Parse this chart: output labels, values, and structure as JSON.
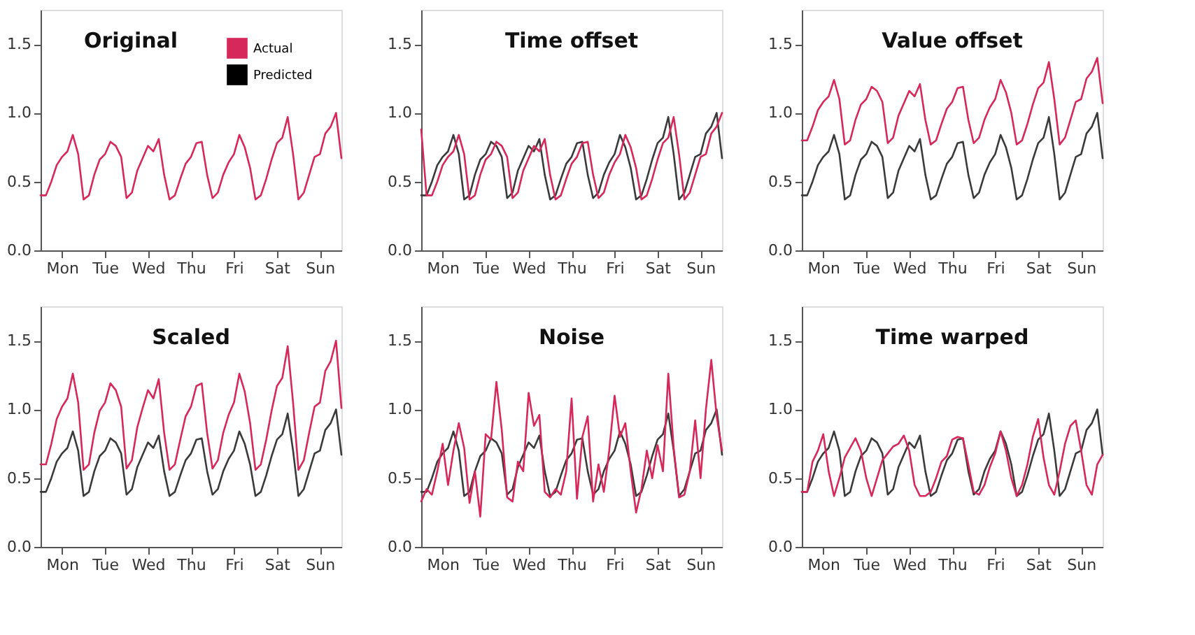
{
  "chart_data": [
    {
      "type": "line",
      "title": "Original",
      "legend": "top right",
      "grid": false,
      "marker": "none",
      "line_style": "solid",
      "categories": [
        null,
        null,
        null,
        null,
        "Mon",
        null,
        null,
        null,
        null,
        null,
        null,
        null,
        "Tue",
        null,
        null,
        null,
        null,
        null,
        null,
        null,
        "Wed",
        null,
        null,
        null,
        null,
        null,
        null,
        null,
        "Thu",
        null,
        null,
        null,
        null,
        null,
        null,
        null,
        "Fri",
        null,
        null,
        null,
        null,
        null,
        null,
        null,
        "Sat",
        null,
        null,
        null,
        null,
        null,
        null,
        null,
        "Sun",
        null,
        null,
        null,
        null
      ],
      "ylim": [
        0,
        1.75
      ],
      "yticks": [
        {
          "value": 0,
          "label": "0.0"
        },
        {
          "value": 0.5,
          "label": "0.5"
        },
        {
          "value": 1,
          "label": "1.0"
        },
        {
          "value": 1.5,
          "label": "1.5"
        }
      ],
      "series": [
        {
          "name": "Predicted",
          "color": "#000000",
          "values": [
            null,
            null,
            null,
            null,
            null,
            null,
            null,
            null,
            null,
            null,
            null,
            null,
            null,
            null,
            null,
            null,
            null,
            null,
            null,
            null,
            null,
            null,
            null,
            null,
            null,
            null,
            null,
            null,
            null,
            null,
            null,
            null,
            null,
            null,
            null,
            null,
            null,
            null,
            null,
            null,
            null,
            null,
            null,
            null,
            null,
            null,
            null,
            null,
            null,
            null,
            null,
            null,
            null,
            null,
            null,
            null,
            null
          ]
        },
        {
          "name": "Actual",
          "color": "#d6285a",
          "values": [
            0.4,
            0.4,
            0.5,
            0.62,
            0.68,
            0.72,
            0.84,
            0.7,
            0.37,
            0.4,
            0.55,
            0.66,
            0.7,
            0.79,
            0.76,
            0.68,
            0.38,
            0.42,
            0.58,
            0.67,
            0.76,
            0.72,
            0.81,
            0.55,
            0.37,
            0.4,
            0.52,
            0.63,
            0.68,
            0.78,
            0.79,
            0.55,
            0.38,
            0.42,
            0.55,
            0.64,
            0.7,
            0.84,
            0.75,
            0.6,
            0.37,
            0.4,
            0.52,
            0.66,
            0.78,
            0.82,
            0.97,
            0.7,
            0.37,
            0.42,
            0.55,
            0.68,
            0.7,
            0.85,
            0.9,
            1.0,
            0.67
          ]
        }
      ]
    },
    {
      "type": "line",
      "title": "Time offset",
      "grid": false,
      "marker": "none",
      "line_style": "solid",
      "categories": [
        null,
        null,
        null,
        null,
        "Mon",
        null,
        null,
        null,
        null,
        null,
        null,
        null,
        "Tue",
        null,
        null,
        null,
        null,
        null,
        null,
        null,
        "Wed",
        null,
        null,
        null,
        null,
        null,
        null,
        null,
        "Thu",
        null,
        null,
        null,
        null,
        null,
        null,
        null,
        "Fri",
        null,
        null,
        null,
        null,
        null,
        null,
        null,
        "Sat",
        null,
        null,
        null,
        null,
        null,
        null,
        null,
        "Sun",
        null,
        null,
        null,
        null
      ],
      "ylim": [
        0,
        1.75
      ],
      "yticks": [
        {
          "value": 0,
          "label": "0.0"
        },
        {
          "value": 0.5,
          "label": "0.5"
        },
        {
          "value": 1,
          "label": "1.0"
        },
        {
          "value": 1.5,
          "label": "1.5"
        }
      ],
      "series": [
        {
          "color": "#3a3a3a",
          "values": [
            0.4,
            0.4,
            0.5,
            0.62,
            0.68,
            0.72,
            0.84,
            0.7,
            0.37,
            0.4,
            0.55,
            0.66,
            0.7,
            0.79,
            0.76,
            0.68,
            0.38,
            0.42,
            0.58,
            0.67,
            0.76,
            0.72,
            0.81,
            0.55,
            0.37,
            0.4,
            0.52,
            0.63,
            0.68,
            0.78,
            0.79,
            0.55,
            0.38,
            0.42,
            0.55,
            0.64,
            0.7,
            0.84,
            0.75,
            0.6,
            0.37,
            0.4,
            0.52,
            0.66,
            0.78,
            0.82,
            0.97,
            0.7,
            0.37,
            0.42,
            0.55,
            0.68,
            0.7,
            0.85,
            0.9,
            1.0,
            0.67
          ]
        },
        {
          "color": "#d6285a",
          "values": [
            0.88,
            0.4,
            0.4,
            0.5,
            0.62,
            0.68,
            0.72,
            0.84,
            0.7,
            0.37,
            0.4,
            0.55,
            0.66,
            0.7,
            0.79,
            0.76,
            0.68,
            0.38,
            0.42,
            0.58,
            0.67,
            0.76,
            0.72,
            0.81,
            0.55,
            0.37,
            0.4,
            0.52,
            0.63,
            0.68,
            0.78,
            0.79,
            0.55,
            0.38,
            0.42,
            0.55,
            0.64,
            0.7,
            0.84,
            0.75,
            0.6,
            0.37,
            0.4,
            0.52,
            0.66,
            0.78,
            0.82,
            0.97,
            0.7,
            0.37,
            0.42,
            0.55,
            0.68,
            0.7,
            0.85,
            0.9,
            1.0
          ]
        }
      ]
    },
    {
      "type": "line",
      "title": "Value offset",
      "grid": false,
      "marker": "none",
      "line_style": "solid",
      "categories": [
        null,
        null,
        null,
        null,
        "Mon",
        null,
        null,
        null,
        null,
        null,
        null,
        null,
        "Tue",
        null,
        null,
        null,
        null,
        null,
        null,
        null,
        "Wed",
        null,
        null,
        null,
        null,
        null,
        null,
        null,
        "Thu",
        null,
        null,
        null,
        null,
        null,
        null,
        null,
        "Fri",
        null,
        null,
        null,
        null,
        null,
        null,
        null,
        "Sat",
        null,
        null,
        null,
        null,
        null,
        null,
        null,
        "Sun",
        null,
        null,
        null,
        null
      ],
      "ylim": [
        0,
        1.75
      ],
      "yticks": [
        {
          "value": 0,
          "label": "0.0"
        },
        {
          "value": 0.5,
          "label": "0.5"
        },
        {
          "value": 1,
          "label": "1.0"
        },
        {
          "value": 1.5,
          "label": "1.5"
        }
      ],
      "series": [
        {
          "color": "#3a3a3a",
          "values": [
            0.4,
            0.4,
            0.5,
            0.62,
            0.68,
            0.72,
            0.84,
            0.7,
            0.37,
            0.4,
            0.55,
            0.66,
            0.7,
            0.79,
            0.76,
            0.68,
            0.38,
            0.42,
            0.58,
            0.67,
            0.76,
            0.72,
            0.81,
            0.55,
            0.37,
            0.4,
            0.52,
            0.63,
            0.68,
            0.78,
            0.79,
            0.55,
            0.38,
            0.42,
            0.55,
            0.64,
            0.7,
            0.84,
            0.75,
            0.6,
            0.37,
            0.4,
            0.52,
            0.66,
            0.78,
            0.82,
            0.97,
            0.7,
            0.37,
            0.42,
            0.55,
            0.68,
            0.7,
            0.85,
            0.9,
            1.0,
            0.67
          ]
        },
        {
          "color": "#d6285a",
          "values": [
            0.8,
            0.8,
            0.9,
            1.02,
            1.08,
            1.12,
            1.24,
            1.1,
            0.77,
            0.8,
            0.95,
            1.06,
            1.1,
            1.19,
            1.16,
            1.08,
            0.78,
            0.82,
            0.98,
            1.07,
            1.16,
            1.12,
            1.21,
            0.95,
            0.77,
            0.8,
            0.92,
            1.03,
            1.08,
            1.18,
            1.19,
            0.95,
            0.78,
            0.82,
            0.95,
            1.04,
            1.1,
            1.24,
            1.15,
            1.0,
            0.77,
            0.8,
            0.92,
            1.06,
            1.18,
            1.22,
            1.37,
            1.1,
            0.77,
            0.82,
            0.95,
            1.08,
            1.1,
            1.25,
            1.3,
            1.4,
            1.07
          ]
        }
      ]
    },
    {
      "type": "line",
      "title": "Scaled",
      "grid": false,
      "marker": "none",
      "line_style": "solid",
      "categories": [
        null,
        null,
        null,
        null,
        "Mon",
        null,
        null,
        null,
        null,
        null,
        null,
        null,
        "Tue",
        null,
        null,
        null,
        null,
        null,
        null,
        null,
        "Wed",
        null,
        null,
        null,
        null,
        null,
        null,
        null,
        "Thu",
        null,
        null,
        null,
        null,
        null,
        null,
        null,
        "Fri",
        null,
        null,
        null,
        null,
        null,
        null,
        null,
        "Sat",
        null,
        null,
        null,
        null,
        null,
        null,
        null,
        "Sun",
        null,
        null,
        null,
        null
      ],
      "ylim": [
        0,
        1.75
      ],
      "yticks": [
        {
          "value": 0,
          "label": "0.0"
        },
        {
          "value": 0.5,
          "label": "0.5"
        },
        {
          "value": 1,
          "label": "1.0"
        },
        {
          "value": 1.5,
          "label": "1.5"
        }
      ],
      "series": [
        {
          "color": "#3a3a3a",
          "values": [
            0.4,
            0.4,
            0.5,
            0.62,
            0.68,
            0.72,
            0.84,
            0.7,
            0.37,
            0.4,
            0.55,
            0.66,
            0.7,
            0.79,
            0.76,
            0.68,
            0.38,
            0.42,
            0.58,
            0.67,
            0.76,
            0.72,
            0.81,
            0.55,
            0.37,
            0.4,
            0.52,
            0.63,
            0.68,
            0.78,
            0.79,
            0.55,
            0.38,
            0.42,
            0.55,
            0.64,
            0.7,
            0.84,
            0.75,
            0.6,
            0.37,
            0.4,
            0.52,
            0.66,
            0.78,
            0.82,
            0.97,
            0.7,
            0.37,
            0.42,
            0.55,
            0.68,
            0.7,
            0.85,
            0.9,
            1.0,
            0.67
          ]
        },
        {
          "color": "#d6285a",
          "values": [
            0.6,
            0.6,
            0.75,
            0.93,
            1.02,
            1.08,
            1.26,
            1.05,
            0.56,
            0.6,
            0.83,
            0.99,
            1.05,
            1.19,
            1.14,
            1.02,
            0.57,
            0.63,
            0.87,
            1.01,
            1.14,
            1.08,
            1.22,
            0.83,
            0.56,
            0.6,
            0.78,
            0.95,
            1.02,
            1.17,
            1.19,
            0.83,
            0.57,
            0.63,
            0.83,
            0.96,
            1.05,
            1.26,
            1.13,
            0.9,
            0.56,
            0.6,
            0.78,
            0.99,
            1.17,
            1.23,
            1.46,
            1.05,
            0.56,
            0.63,
            0.83,
            1.02,
            1.05,
            1.28,
            1.35,
            1.5,
            1.01
          ]
        }
      ]
    },
    {
      "type": "line",
      "title": "Noise",
      "grid": false,
      "marker": "none",
      "line_style": "solid",
      "categories": [
        null,
        null,
        null,
        null,
        "Mon",
        null,
        null,
        null,
        null,
        null,
        null,
        null,
        "Tue",
        null,
        null,
        null,
        null,
        null,
        null,
        null,
        "Wed",
        null,
        null,
        null,
        null,
        null,
        null,
        null,
        "Thu",
        null,
        null,
        null,
        null,
        null,
        null,
        null,
        "Fri",
        null,
        null,
        null,
        null,
        null,
        null,
        null,
        "Sat",
        null,
        null,
        null,
        null,
        null,
        null,
        null,
        "Sun",
        null,
        null,
        null,
        null
      ],
      "ylim": [
        0,
        1.75
      ],
      "yticks": [
        {
          "value": 0,
          "label": "0.0"
        },
        {
          "value": 0.5,
          "label": "0.5"
        },
        {
          "value": 1,
          "label": "1.0"
        },
        {
          "value": 1.5,
          "label": "1.5"
        }
      ],
      "series": [
        {
          "color": "#3a3a3a",
          "values": [
            0.4,
            0.4,
            0.5,
            0.62,
            0.68,
            0.72,
            0.84,
            0.7,
            0.37,
            0.4,
            0.55,
            0.66,
            0.7,
            0.79,
            0.76,
            0.68,
            0.38,
            0.42,
            0.58,
            0.67,
            0.76,
            0.72,
            0.81,
            0.55,
            0.37,
            0.4,
            0.52,
            0.63,
            0.68,
            0.78,
            0.79,
            0.55,
            0.38,
            0.42,
            0.55,
            0.64,
            0.7,
            0.84,
            0.75,
            0.6,
            0.37,
            0.4,
            0.52,
            0.66,
            0.78,
            0.82,
            0.97,
            0.7,
            0.37,
            0.42,
            0.55,
            0.68,
            0.7,
            0.85,
            0.9,
            1.0,
            0.67
          ]
        },
        {
          "color": "#d6285a",
          "values": [
            0.33,
            0.42,
            0.38,
            0.55,
            0.75,
            0.45,
            0.7,
            0.9,
            0.72,
            0.32,
            0.55,
            0.22,
            0.82,
            0.78,
            1.2,
            0.85,
            0.36,
            0.33,
            0.62,
            0.55,
            1.12,
            0.88,
            0.96,
            0.4,
            0.36,
            0.42,
            0.38,
            0.55,
            1.08,
            0.35,
            0.8,
            0.95,
            0.33,
            0.6,
            0.4,
            0.7,
            1.1,
            0.8,
            0.9,
            0.55,
            0.25,
            0.42,
            0.7,
            0.5,
            0.74,
            0.55,
            1.26,
            0.72,
            0.36,
            0.38,
            0.55,
            0.92,
            0.5,
            1.0,
            1.36,
            0.95,
            0.7
          ]
        }
      ]
    },
    {
      "type": "line",
      "title": "Time warped",
      "grid": false,
      "marker": "none",
      "line_style": "solid",
      "categories": [
        null,
        null,
        null,
        null,
        "Mon",
        null,
        null,
        null,
        null,
        null,
        null,
        null,
        "Tue",
        null,
        null,
        null,
        null,
        null,
        null,
        null,
        "Wed",
        null,
        null,
        null,
        null,
        null,
        null,
        null,
        "Thu",
        null,
        null,
        null,
        null,
        null,
        null,
        null,
        "Fri",
        null,
        null,
        null,
        null,
        null,
        null,
        null,
        "Sat",
        null,
        null,
        null,
        null,
        null,
        null,
        null,
        "Sun",
        null,
        null,
        null,
        null
      ],
      "ylim": [
        0,
        1.75
      ],
      "yticks": [
        {
          "value": 0,
          "label": "0.0"
        },
        {
          "value": 0.5,
          "label": "0.5"
        },
        {
          "value": 1,
          "label": "1.0"
        },
        {
          "value": 1.5,
          "label": "1.5"
        }
      ],
      "series": [
        {
          "color": "#3a3a3a",
          "values": [
            0.4,
            0.4,
            0.5,
            0.62,
            0.68,
            0.72,
            0.84,
            0.7,
            0.37,
            0.4,
            0.55,
            0.66,
            0.7,
            0.79,
            0.76,
            0.68,
            0.38,
            0.42,
            0.58,
            0.67,
            0.76,
            0.72,
            0.81,
            0.55,
            0.37,
            0.4,
            0.52,
            0.63,
            0.68,
            0.78,
            0.79,
            0.55,
            0.38,
            0.42,
            0.55,
            0.64,
            0.7,
            0.84,
            0.75,
            0.6,
            0.37,
            0.4,
            0.52,
            0.66,
            0.78,
            0.82,
            0.97,
            0.7,
            0.37,
            0.42,
            0.55,
            0.68,
            0.7,
            0.85,
            0.9,
            1.0,
            0.67
          ]
        },
        {
          "color": "#d6285a",
          "values": [
            0.4,
            0.4,
            0.62,
            0.7,
            0.82,
            0.55,
            0.37,
            0.5,
            0.65,
            0.72,
            0.79,
            0.7,
            0.5,
            0.37,
            0.5,
            0.63,
            0.68,
            0.73,
            0.75,
            0.81,
            0.7,
            0.45,
            0.37,
            0.37,
            0.4,
            0.5,
            0.62,
            0.66,
            0.78,
            0.8,
            0.79,
            0.6,
            0.4,
            0.38,
            0.45,
            0.58,
            0.68,
            0.84,
            0.7,
            0.5,
            0.37,
            0.45,
            0.6,
            0.8,
            0.93,
            0.65,
            0.45,
            0.38,
            0.55,
            0.75,
            0.88,
            0.92,
            0.7,
            0.45,
            0.38,
            0.6,
            0.67
          ]
        }
      ]
    }
  ]
}
